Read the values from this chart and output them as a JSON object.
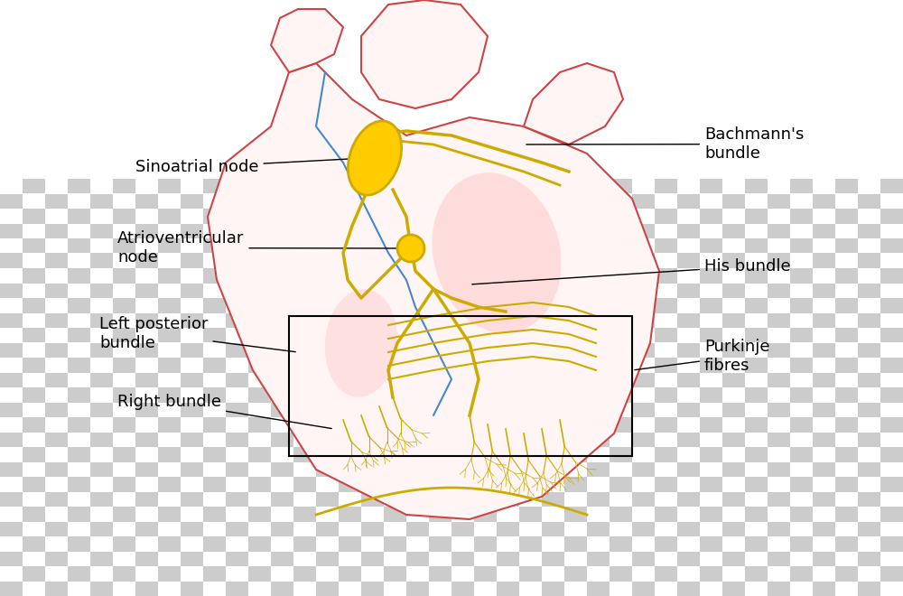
{
  "background_color": "#ffffff",
  "checkerboard_color1": "#cccccc",
  "checkerboard_color2": "#ffffff",
  "heart_outline_color": "#cc4444",
  "heart_fill_color": "#fff5f5",
  "blue_line_color": "#4488cc",
  "conduction_color": "#ccaa00",
  "conduction_fill": "#ffdd00",
  "node_fill": "#ffcc00",
  "line_color": "#000000",
  "text_color": "#000000",
  "annotation_fontsize": 13,
  "labels": {
    "sinoatrial_node": "Sinoatrial node",
    "av_node": "Atrioventricular\nnode",
    "bachmanns_bundle": "Bachmann's\nbundle",
    "his_bundle": "His bundle",
    "left_posterior": "Left posterior\nbundle",
    "right_bundle": "Right bundle",
    "purkinje": "Purkinje\nfibres"
  }
}
